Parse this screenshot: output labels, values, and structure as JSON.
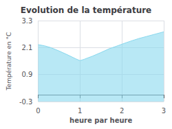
{
  "chart_data": {
    "type": "area",
    "title": "Evolution de la température",
    "xlabel": "heure par heure",
    "ylabel": "Température en °C",
    "x": [
      0,
      0.15,
      0.3,
      0.5,
      0.7,
      0.9,
      1.0,
      1.1,
      1.3,
      1.5,
      1.7,
      1.9,
      2.0,
      2.2,
      2.4,
      2.6,
      2.8,
      3.0
    ],
    "values": [
      2.23,
      2.18,
      2.1,
      1.95,
      1.78,
      1.6,
      1.52,
      1.58,
      1.72,
      1.88,
      2.05,
      2.18,
      2.25,
      2.38,
      2.5,
      2.6,
      2.7,
      2.8
    ],
    "color": "#88d8ee",
    "xlim": [
      0,
      3
    ],
    "xticks": [
      0,
      1,
      2,
      3
    ],
    "ylim": [
      -0.3,
      3.3
    ],
    "yticks": [
      -0.3,
      0.9,
      2.1,
      3.3
    ],
    "grid": true
  }
}
